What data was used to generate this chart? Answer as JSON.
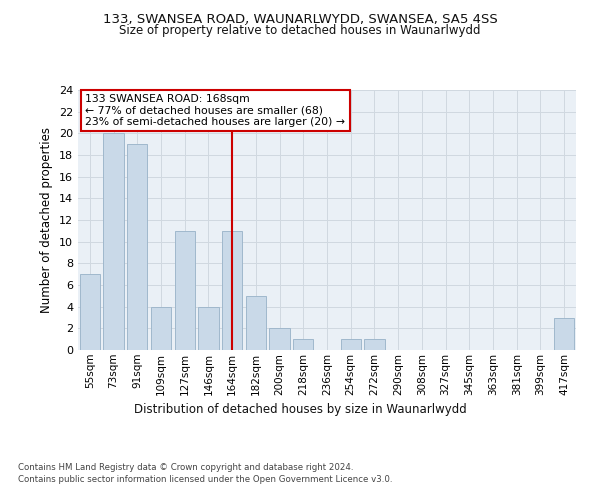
{
  "title": "133, SWANSEA ROAD, WAUNARLWYDD, SWANSEA, SA5 4SS",
  "subtitle": "Size of property relative to detached houses in Waunarlwydd",
  "xlabel": "Distribution of detached houses by size in Waunarlwydd",
  "ylabel": "Number of detached properties",
  "bin_labels": [
    "55sqm",
    "73sqm",
    "91sqm",
    "109sqm",
    "127sqm",
    "146sqm",
    "164sqm",
    "182sqm",
    "200sqm",
    "218sqm",
    "236sqm",
    "254sqm",
    "272sqm",
    "290sqm",
    "308sqm",
    "327sqm",
    "345sqm",
    "363sqm",
    "381sqm",
    "399sqm",
    "417sqm"
  ],
  "bar_values": [
    7,
    20,
    19,
    4,
    11,
    4,
    11,
    5,
    2,
    1,
    0,
    1,
    1,
    0,
    0,
    0,
    0,
    0,
    0,
    0,
    3
  ],
  "bar_color": "#c9d9e8",
  "bar_edgecolor": "#a0b8cc",
  "vline_x": 6,
  "vline_color": "#cc0000",
  "annotation_text": "133 SWANSEA ROAD: 168sqm\n← 77% of detached houses are smaller (68)\n23% of semi-detached houses are larger (20) →",
  "annotation_box_color": "#ffffff",
  "annotation_box_edgecolor": "#cc0000",
  "ylim": [
    0,
    24
  ],
  "yticks": [
    0,
    2,
    4,
    6,
    8,
    10,
    12,
    14,
    16,
    18,
    20,
    22,
    24
  ],
  "footer_line1": "Contains HM Land Registry data © Crown copyright and database right 2024.",
  "footer_line2": "Contains public sector information licensed under the Open Government Licence v3.0.",
  "bg_color": "#ffffff",
  "grid_color": "#d0d8e0",
  "fig_width": 6.0,
  "fig_height": 5.0
}
